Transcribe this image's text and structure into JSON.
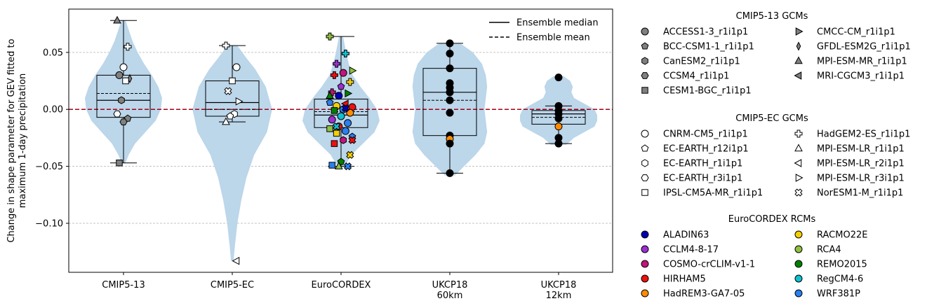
{
  "chart_data": {
    "type": "violin",
    "ylabel": "Change in shape parameter for GEV fitted to\nmaximum 1-day precipitation",
    "categories": [
      "CMIP5-13",
      "CMIP5-EC",
      "EuroCORDEX",
      "UKCP18\n60km",
      "UKCP18\n12km"
    ],
    "ylim": [
      -0.143,
      0.088
    ],
    "yticks": [
      0.05,
      0.0,
      -0.05,
      -0.1
    ],
    "ytick_labels": [
      "0.05",
      "0.00",
      "−0.05",
      "−0.10"
    ],
    "grid": "horizontal dashed",
    "zero_line_color": "#a00018",
    "violin_color": "#bcd6ea",
    "legend_lines": [
      {
        "label": "Ensemble median",
        "style": "solid"
      },
      {
        "label": "Ensemble mean",
        "style": "dashed"
      }
    ],
    "legend_groups": [
      {
        "title": "CMIP5-13 GCMs",
        "entries": [
          {
            "label": "ACCESS1-3_r1i1p1",
            "marker": "circle",
            "color": "#808080"
          },
          {
            "label": "BCC-CSM1-1_r1i1p1",
            "marker": "pentagon",
            "color": "#808080"
          },
          {
            "label": "CanESM2_r1i1p1",
            "marker": "hexagon",
            "color": "#808080"
          },
          {
            "label": "CCSM4_r1i1p1",
            "marker": "hexagon2",
            "color": "#808080"
          },
          {
            "label": "CESM1-BGC_r1i1p1",
            "marker": "square",
            "color": "#808080"
          },
          {
            "label": "CMCC-CM_r1i1p1",
            "marker": "tri-right",
            "color": "#808080"
          },
          {
            "label": "GFDL-ESM2G_r1i1p1",
            "marker": "thin-diamond",
            "color": "#808080"
          },
          {
            "label": "MPI-ESM-MR_r1i1p1",
            "marker": "tri-up",
            "color": "#808080"
          },
          {
            "label": "MRI-CGCM3_r1i1p1",
            "marker": "tri-left",
            "color": "#808080"
          }
        ]
      },
      {
        "title": "CMIP5-EC GCMs",
        "entries": [
          {
            "label": "CNRM-CM5_r1i1p1",
            "marker": "circle",
            "color": "#ffffff"
          },
          {
            "label": "EC-EARTH_r12i1p1",
            "marker": "pentagon",
            "color": "#ffffff"
          },
          {
            "label": "EC-EARTH_r1i1p1",
            "marker": "hexagon",
            "color": "#ffffff"
          },
          {
            "label": "EC-EARTH_r3i1p1",
            "marker": "hexagon2",
            "color": "#ffffff"
          },
          {
            "label": "IPSL-CM5A-MR_r1i1p1",
            "marker": "square",
            "color": "#ffffff"
          },
          {
            "label": "HadGEM2-ES_r1i1p1",
            "marker": "plus",
            "color": "#ffffff"
          },
          {
            "label": "MPI-ESM-LR_r1i1p1",
            "marker": "tri-up",
            "color": "#ffffff"
          },
          {
            "label": "MPI-ESM-LR_r2i1p1",
            "marker": "tri-left",
            "color": "#ffffff"
          },
          {
            "label": "MPI-ESM-LR_r3i1p1",
            "marker": "tri-right",
            "color": "#ffffff"
          },
          {
            "label": "NorESM1-M_r1i1p1",
            "marker": "x",
            "color": "#ffffff"
          }
        ]
      },
      {
        "title": "EuroCORDEX RCMs",
        "entries": [
          {
            "label": "ALADIN63",
            "marker": "circle",
            "color": "#0000b4"
          },
          {
            "label": "CCLM4-8-17",
            "marker": "circle",
            "color": "#9b30d0"
          },
          {
            "label": "COSMO-crCLIM-v1-1",
            "marker": "circle",
            "color": "#c0157a"
          },
          {
            "label": "HIRHAM5",
            "marker": "circle",
            "color": "#ee1111"
          },
          {
            "label": "HadREM3-GA7-05",
            "marker": "circle",
            "color": "#ff8c00"
          },
          {
            "label": "RACMO22E",
            "marker": "circle",
            "color": "#f5d000"
          },
          {
            "label": "RCA4",
            "marker": "circle",
            "color": "#90c040"
          },
          {
            "label": "REMO2015",
            "marker": "circle",
            "color": "#008000"
          },
          {
            "label": "RegCM4-6",
            "marker": "circle",
            "color": "#10c0d0"
          },
          {
            "label": "WRF381P",
            "marker": "circle",
            "color": "#2a80f0"
          }
        ]
      }
    ],
    "groups": [
      {
        "name": "CMIP5-13",
        "box": {
          "q1": -0.007,
          "q3": 0.03,
          "median": 0.008,
          "mean": 0.014,
          "wlo": -0.047,
          "whi": 0.078
        },
        "violin": [
          [
            -0.047,
            0.008
          ],
          [
            -0.04,
            0.02
          ],
          [
            -0.03,
            0.045
          ],
          [
            -0.02,
            0.085
          ],
          [
            -0.01,
            0.125
          ],
          [
            0.0,
            0.145
          ],
          [
            0.01,
            0.15
          ],
          [
            0.02,
            0.135
          ],
          [
            0.03,
            0.11
          ],
          [
            0.04,
            0.08
          ],
          [
            0.05,
            0.055
          ],
          [
            0.06,
            0.035
          ],
          [
            0.07,
            0.02
          ],
          [
            0.078,
            0.008
          ]
        ],
        "points": [
          {
            "y": 0.078,
            "marker": "tri-up",
            "color": "#808080"
          },
          {
            "y": 0.055,
            "marker": "plus",
            "color": "#ffffff"
          },
          {
            "y": 0.037,
            "marker": "circle",
            "color": "#ffffff"
          },
          {
            "y": 0.03,
            "marker": "circle",
            "color": "#808080"
          },
          {
            "y": 0.027,
            "marker": "thin-diamond",
            "color": "#808080"
          },
          {
            "y": 0.025,
            "marker": "square",
            "color": "#ffffff"
          },
          {
            "y": 0.008,
            "marker": "hexagon",
            "color": "#808080"
          },
          {
            "y": -0.004,
            "marker": "hexagon2",
            "color": "#ffffff"
          },
          {
            "y": -0.008,
            "marker": "pentagon",
            "color": "#808080"
          },
          {
            "y": -0.011,
            "marker": "hexagon2",
            "color": "#808080"
          },
          {
            "y": -0.047,
            "marker": "square",
            "color": "#808080"
          }
        ]
      },
      {
        "name": "CMIP5-EC",
        "box": {
          "q1": -0.006,
          "q3": 0.025,
          "median": 0.006,
          "mean": 0.0,
          "wlo": -0.011,
          "whi": 0.056
        },
        "violin": [
          [
            -0.133,
            0.005
          ],
          [
            -0.12,
            0.01
          ],
          [
            -0.1,
            0.02
          ],
          [
            -0.08,
            0.035
          ],
          [
            -0.06,
            0.055
          ],
          [
            -0.04,
            0.085
          ],
          [
            -0.02,
            0.135
          ],
          [
            0.0,
            0.155
          ],
          [
            0.02,
            0.13
          ],
          [
            0.035,
            0.09
          ],
          [
            0.045,
            0.055
          ],
          [
            0.056,
            0.02
          ]
        ],
        "points": [
          {
            "y": 0.056,
            "marker": "plus",
            "color": "#ffffff"
          },
          {
            "y": 0.037,
            "marker": "circle",
            "color": "#ffffff"
          },
          {
            "y": 0.025,
            "marker": "square",
            "color": "#ffffff"
          },
          {
            "y": 0.016,
            "marker": "x",
            "color": "#ffffff"
          },
          {
            "y": 0.007,
            "marker": "tri-right",
            "color": "#ffffff"
          },
          {
            "y": -0.004,
            "marker": "hexagon",
            "color": "#ffffff"
          },
          {
            "y": -0.006,
            "marker": "pentagon",
            "color": "#ffffff"
          },
          {
            "y": -0.011,
            "marker": "tri-up",
            "color": "#ffffff"
          },
          {
            "y": -0.133,
            "marker": "tri-left",
            "color": "#ffffff"
          }
        ]
      },
      {
        "name": "EuroCORDEX",
        "box": {
          "q1": -0.016,
          "q3": 0.009,
          "median": -0.005,
          "mean": -0.002,
          "wlo": -0.05,
          "whi": 0.064
        },
        "violin": [
          [
            -0.051,
            0.012
          ],
          [
            -0.04,
            0.04
          ],
          [
            -0.03,
            0.085
          ],
          [
            -0.02,
            0.13
          ],
          [
            -0.01,
            0.15
          ],
          [
            0.0,
            0.14
          ],
          [
            0.01,
            0.11
          ],
          [
            0.02,
            0.075
          ],
          [
            0.03,
            0.045
          ],
          [
            0.04,
            0.03
          ],
          [
            0.05,
            0.02
          ],
          [
            0.064,
            0.008
          ]
        ],
        "points": [
          {
            "y": 0.064,
            "marker": "plus",
            "color": "#90c040"
          },
          {
            "y": 0.049,
            "marker": "plus",
            "color": "#10c0d0"
          },
          {
            "y": 0.04,
            "marker": "plus",
            "color": "#9b30d0"
          },
          {
            "y": 0.034,
            "marker": "tri-right",
            "color": "#90c040"
          },
          {
            "y": 0.032,
            "marker": "circle",
            "color": "#c0157a"
          },
          {
            "y": 0.03,
            "marker": "plus",
            "color": "#ee1111"
          },
          {
            "y": 0.024,
            "marker": "plus",
            "color": "#f5d000"
          },
          {
            "y": 0.02,
            "marker": "pentagon",
            "color": "#9b30d0"
          },
          {
            "y": 0.015,
            "marker": "plus",
            "color": "#c0157a"
          },
          {
            "y": 0.014,
            "marker": "tri-right",
            "color": "#008000"
          },
          {
            "y": 0.012,
            "marker": "circle",
            "color": "#0000b4"
          },
          {
            "y": 0.006,
            "marker": "pentagon",
            "color": "#2a80f0"
          },
          {
            "y": 0.005,
            "marker": "tri-left",
            "color": "#ee1111"
          },
          {
            "y": 0.003,
            "marker": "circle",
            "color": "#f5d000"
          },
          {
            "y": 0.002,
            "marker": "circle",
            "color": "#ee1111"
          },
          {
            "y": 0.0,
            "marker": "circle",
            "color": "#2a80f0"
          },
          {
            "y": -0.001,
            "marker": "square",
            "color": "#008000"
          },
          {
            "y": -0.003,
            "marker": "circle",
            "color": "#ff8c00"
          },
          {
            "y": -0.006,
            "marker": "circle",
            "color": "#10c0d0"
          },
          {
            "y": -0.009,
            "marker": "circle",
            "color": "#9b30d0"
          },
          {
            "y": -0.012,
            "marker": "circle",
            "color": "#2a80f0"
          },
          {
            "y": -0.015,
            "marker": "circle",
            "color": "#ee1111"
          },
          {
            "y": -0.017,
            "marker": "square",
            "color": "#90c040"
          },
          {
            "y": -0.019,
            "marker": "circle",
            "color": "#2a80f0"
          },
          {
            "y": -0.021,
            "marker": "square",
            "color": "#f5d000"
          },
          {
            "y": -0.024,
            "marker": "pentagon",
            "color": "#2a80f0"
          },
          {
            "y": -0.027,
            "marker": "hexagon",
            "color": "#c0157a"
          },
          {
            "y": -0.03,
            "marker": "square",
            "color": "#ee1111"
          },
          {
            "y": -0.04,
            "marker": "x",
            "color": "#f5d000"
          },
          {
            "y": -0.046,
            "marker": "pentagon",
            "color": "#008000"
          },
          {
            "y": -0.049,
            "marker": "square",
            "color": "#2a80f0"
          },
          {
            "y": -0.05,
            "marker": "x",
            "color": "#2a80f0"
          },
          {
            "y": -0.05,
            "marker": "tri-up",
            "color": "#90c040"
          },
          {
            "y": 0.012,
            "marker": "tri-up",
            "color": "#008000"
          },
          {
            "y": 0.001,
            "marker": "x",
            "color": "#0000b4"
          },
          {
            "y": -0.015,
            "marker": "x",
            "color": "#10c0d0"
          },
          {
            "y": -0.027,
            "marker": "x",
            "color": "#ee1111"
          }
        ]
      },
      {
        "name": "UKCP18 60km",
        "box": {
          "q1": -0.023,
          "q3": 0.036,
          "median": 0.015,
          "mean": 0.008,
          "wlo": -0.056,
          "whi": 0.058
        },
        "violin": [
          [
            -0.058,
            0.02
          ],
          [
            -0.05,
            0.055
          ],
          [
            -0.04,
            0.1
          ],
          [
            -0.03,
            0.135
          ],
          [
            -0.02,
            0.145
          ],
          [
            -0.01,
            0.14
          ],
          [
            0.0,
            0.135
          ],
          [
            0.01,
            0.14
          ],
          [
            0.02,
            0.145
          ],
          [
            0.03,
            0.14
          ],
          [
            0.04,
            0.125
          ],
          [
            0.05,
            0.09
          ],
          [
            0.058,
            0.04
          ]
        ],
        "points": [
          {
            "y": 0.058,
            "marker": "circle",
            "color": "#000000"
          },
          {
            "y": 0.049,
            "marker": "circle",
            "color": "#000000"
          },
          {
            "y": 0.036,
            "marker": "circle",
            "color": "#000000"
          },
          {
            "y": 0.023,
            "marker": "circle",
            "color": "#000000"
          },
          {
            "y": 0.019,
            "marker": "circle",
            "color": "#000000"
          },
          {
            "y": 0.015,
            "marker": "circle",
            "color": "#000000"
          },
          {
            "y": 0.008,
            "marker": "circle",
            "color": "#000000"
          },
          {
            "y": -0.003,
            "marker": "circle",
            "color": "#000000"
          },
          {
            "y": -0.023,
            "marker": "circle",
            "color": "#000000"
          },
          {
            "y": -0.026,
            "marker": "circle",
            "color": "#ff8c00"
          },
          {
            "y": -0.03,
            "marker": "circle",
            "color": "#000000"
          },
          {
            "y": -0.056,
            "marker": "circle",
            "color": "#000000"
          }
        ]
      },
      {
        "name": "UKCP18 12km",
        "box": {
          "q1": -0.013,
          "q3": -0.001,
          "median": -0.004,
          "mean": -0.007,
          "wlo": -0.03,
          "whi": 0.003
        },
        "violin": [
          [
            -0.031,
            0.03
          ],
          [
            -0.025,
            0.06
          ],
          [
            -0.02,
            0.1
          ],
          [
            -0.015,
            0.14
          ],
          [
            -0.01,
            0.15
          ],
          [
            -0.005,
            0.15
          ],
          [
            0.0,
            0.14
          ],
          [
            0.005,
            0.1
          ],
          [
            0.01,
            0.06
          ],
          [
            0.015,
            0.05
          ],
          [
            0.02,
            0.055
          ],
          [
            0.025,
            0.045
          ],
          [
            0.029,
            0.02
          ]
        ],
        "points": [
          {
            "y": 0.028,
            "marker": "circle",
            "color": "#000000"
          },
          {
            "y": 0.003,
            "marker": "circle",
            "color": "#000000"
          },
          {
            "y": -0.001,
            "marker": "circle",
            "color": "#000000"
          },
          {
            "y": -0.004,
            "marker": "circle",
            "color": "#000000"
          },
          {
            "y": -0.008,
            "marker": "circle",
            "color": "#000000"
          },
          {
            "y": -0.015,
            "marker": "circle",
            "color": "#ff8c00"
          },
          {
            "y": -0.025,
            "marker": "circle",
            "color": "#000000"
          },
          {
            "y": -0.03,
            "marker": "circle",
            "color": "#000000"
          }
        ]
      }
    ]
  }
}
